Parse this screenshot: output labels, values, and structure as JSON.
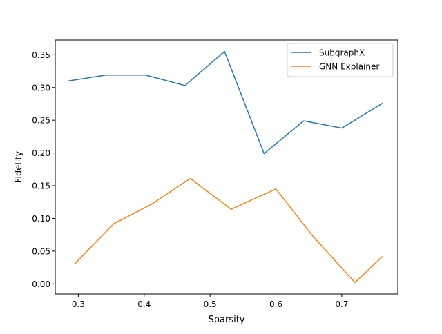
{
  "chart_data": {
    "type": "line",
    "title": "",
    "xlabel": "Sparsity",
    "ylabel": "Fidelity",
    "xlim": [
      0.265,
      0.785
    ],
    "ylim": [
      -0.0155,
      0.3725
    ],
    "grid": false,
    "legend": "top-right",
    "xticks": [
      0.3,
      0.4,
      0.5,
      0.6,
      0.7
    ],
    "xtick_labels": [
      "0.3",
      "0.4",
      "0.5",
      "0.6",
      "0.7"
    ],
    "yticks": [
      0.0,
      0.05,
      0.1,
      0.15,
      0.2,
      0.25,
      0.3,
      0.35
    ],
    "ytick_labels": [
      "0.00",
      "0.05",
      "0.10",
      "0.15",
      "0.20",
      "0.25",
      "0.30",
      "0.35"
    ],
    "series": [
      {
        "name": "SubgraphX",
        "color": "#1f77b4",
        "x": [
          0.285,
          0.342,
          0.402,
          0.462,
          0.522,
          0.582,
          0.642,
          0.7,
          0.762
        ],
        "y": [
          0.31,
          0.319,
          0.319,
          0.303,
          0.355,
          0.199,
          0.249,
          0.238,
          0.276
        ]
      },
      {
        "name": "GNN Explainer",
        "color": "#ff7f0e",
        "x": [
          0.295,
          0.354,
          0.41,
          0.47,
          0.532,
          0.6,
          0.656,
          0.72,
          0.762
        ],
        "y": [
          0.031,
          0.092,
          0.121,
          0.161,
          0.114,
          0.145,
          0.073,
          0.002,
          0.042
        ]
      }
    ]
  }
}
